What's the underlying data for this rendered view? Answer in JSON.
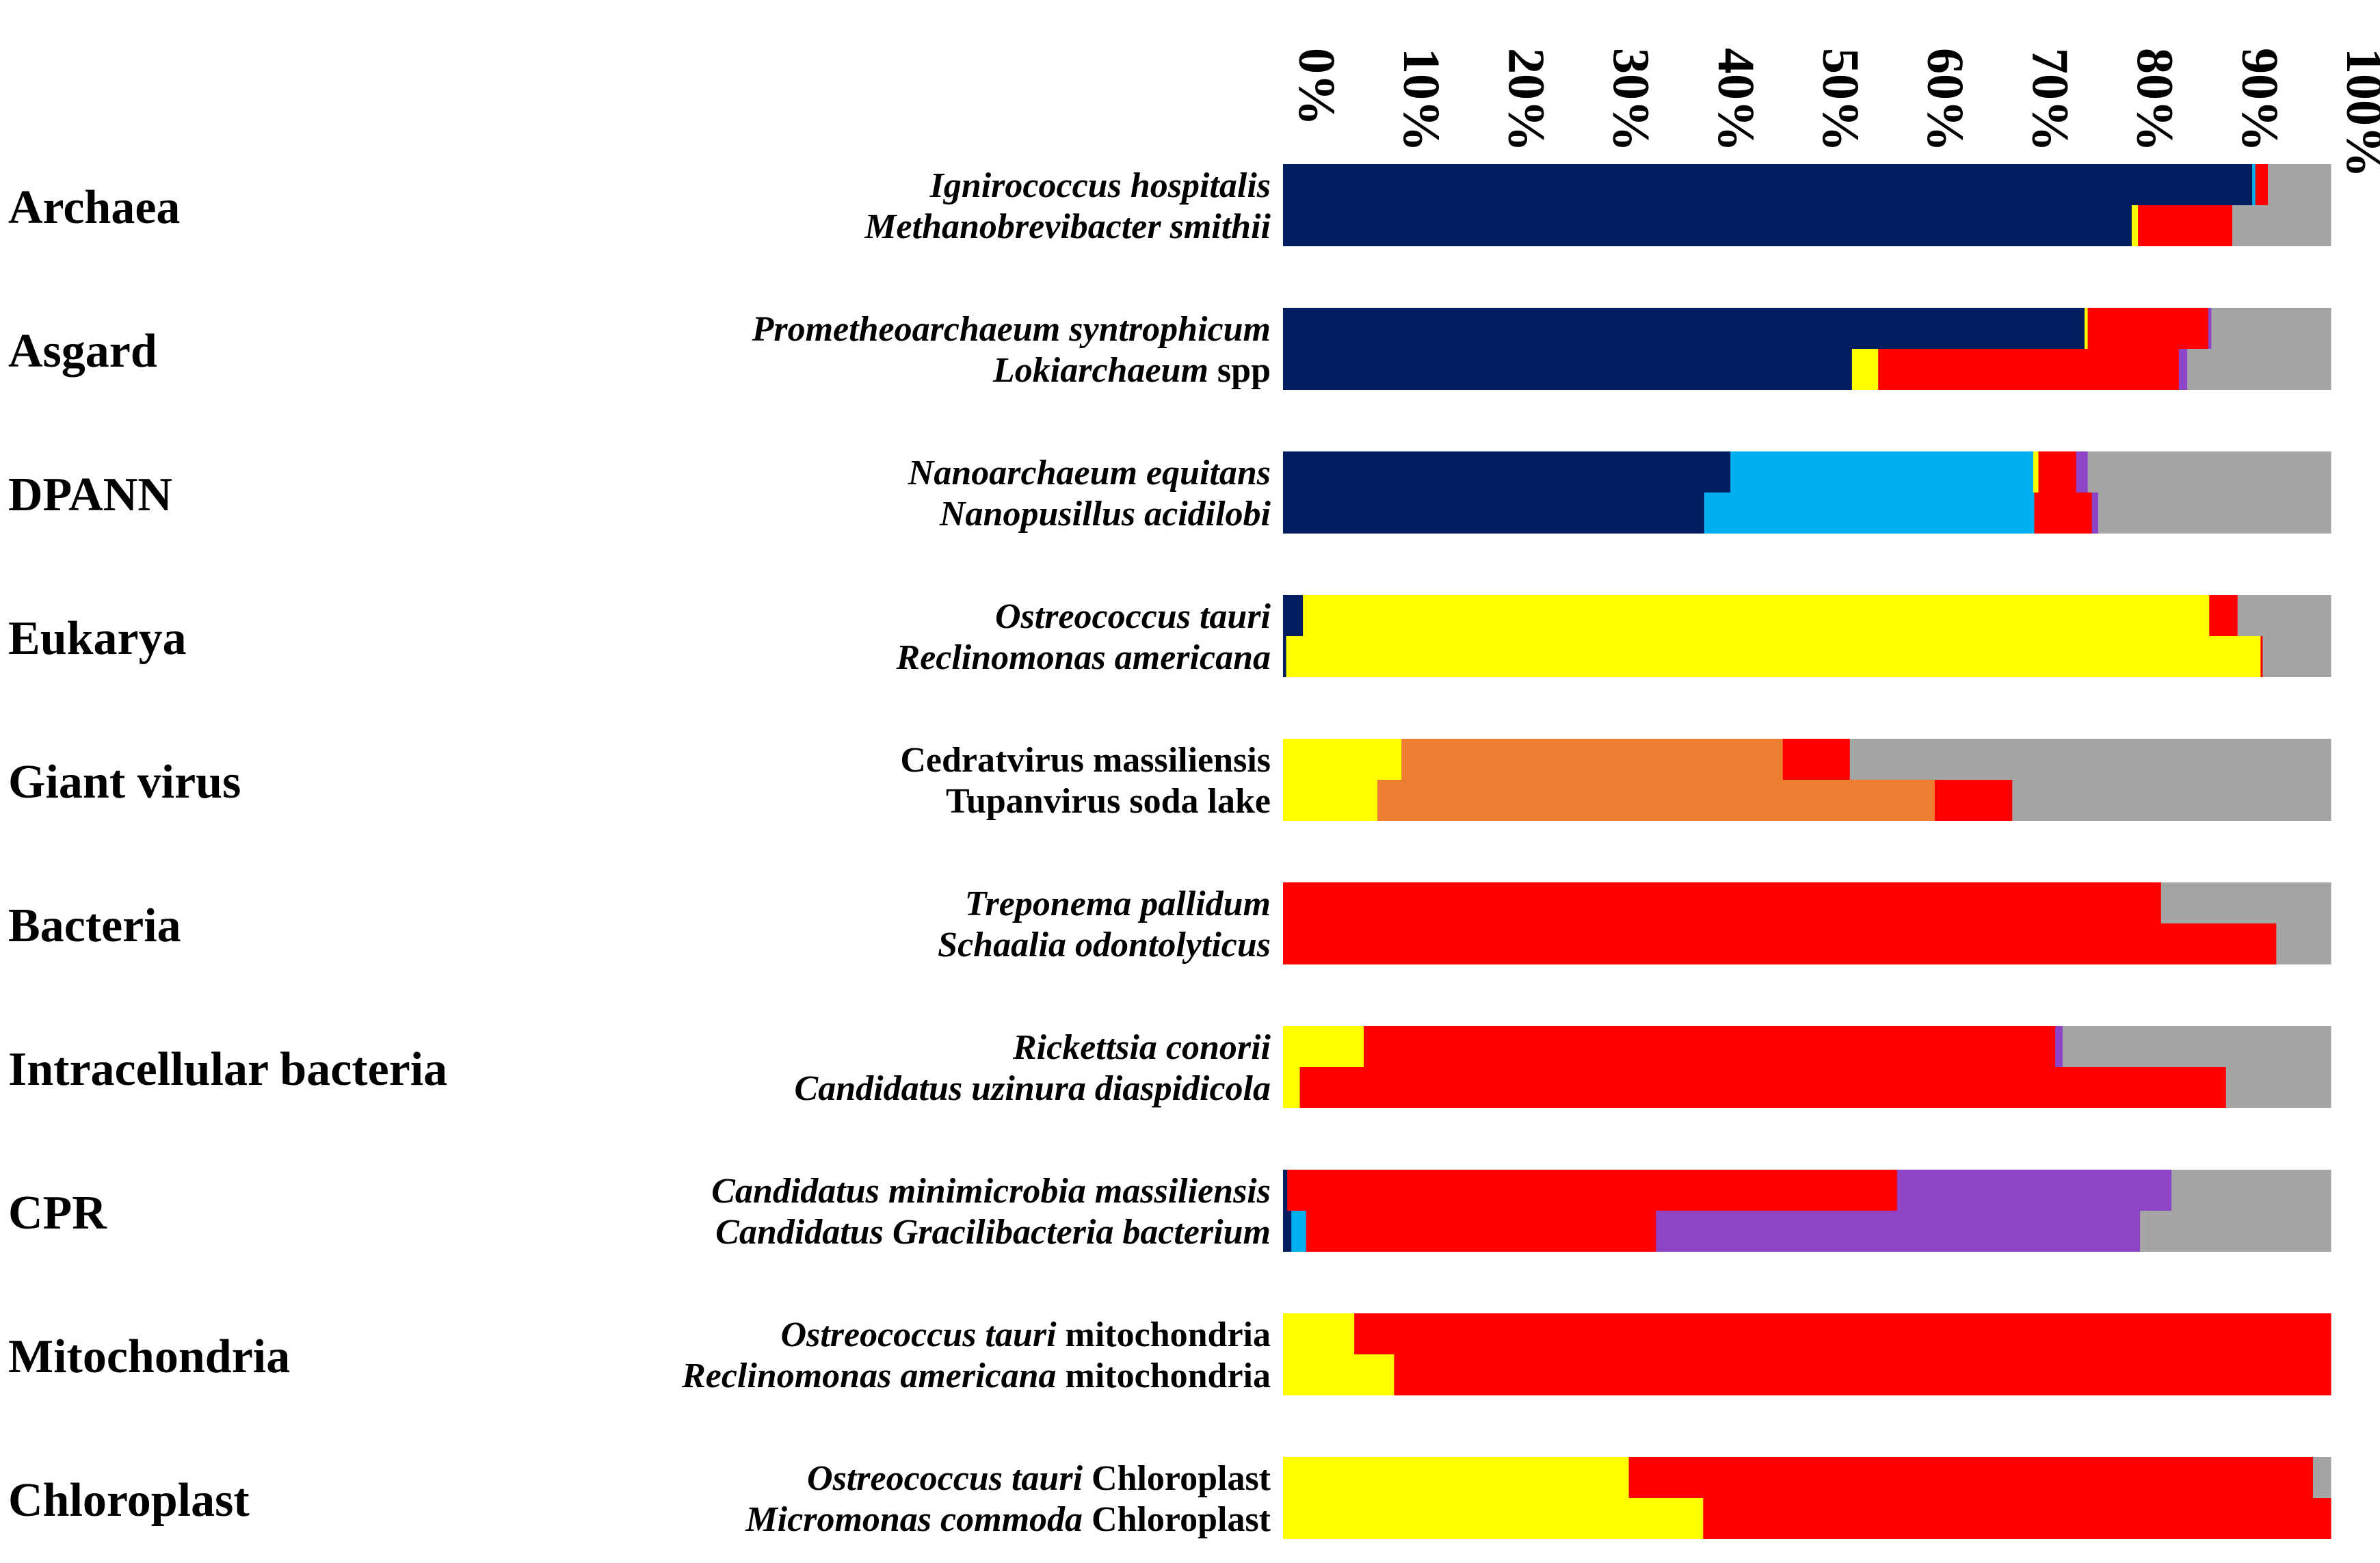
{
  "chart_data": {
    "type": "bar",
    "orientation": "horizontal",
    "stacked": "100%",
    "x_ticks": [
      "0%",
      "10%",
      "20%",
      "30%",
      "40%",
      "50%",
      "60%",
      "70%",
      "80%",
      "90%",
      "100%"
    ],
    "xlim": [
      0,
      100
    ],
    "legend": "none",
    "segment_colors": [
      "#021E5E",
      "#00B0F0",
      "#FFFF00",
      "#ED7D31",
      "#FF0000",
      "#8E44C6",
      "#A5A5A5"
    ],
    "groups": [
      {
        "name": "Archaea",
        "rows": [
          {
            "label": [
              {
                "t": "Ignirococcus hospitalis",
                "i": true
              }
            ],
            "values": [
              92.5,
              0.3,
              0,
              0,
              1.2,
              0,
              6.0
            ]
          },
          {
            "label": [
              {
                "t": "Methanobrevibacter smithii",
                "i": true
              }
            ],
            "values": [
              81.0,
              0,
              0.6,
              0,
              9.0,
              0,
              9.4
            ]
          }
        ]
      },
      {
        "name": "Asgard",
        "rows": [
          {
            "label": [
              {
                "t": "Prometheoarchaeum syntrophicum",
                "i": true
              }
            ],
            "values": [
              76.5,
              0,
              0.3,
              0,
              11.5,
              0.3,
              11.4
            ]
          },
          {
            "label": [
              {
                "t": "Lokiarchaeum",
                "i": true
              },
              {
                "t": " spp",
                "i": false
              }
            ],
            "values": [
              54.3,
              0,
              2.5,
              0,
              28.7,
              0.8,
              13.7
            ]
          }
        ]
      },
      {
        "name": "DPANN",
        "rows": [
          {
            "label": [
              {
                "t": "Nanoarchaeum equitans",
                "i": true
              }
            ],
            "values": [
              42.7,
              28.9,
              0.5,
              0,
              3.6,
              1.1,
              23.2
            ]
          },
          {
            "label": [
              {
                "t": "Nanopusillus acidilobi",
                "i": true
              }
            ],
            "values": [
              40.2,
              31.5,
              0,
              0,
              5.5,
              0.6,
              22.2
            ]
          }
        ]
      },
      {
        "name": "Eukarya",
        "rows": [
          {
            "label": [
              {
                "t": "Ostreococcus tauri",
                "i": true
              }
            ],
            "values": [
              1.9,
              0,
              86.5,
              0,
              2.7,
              0,
              8.9
            ]
          },
          {
            "label": [
              {
                "t": "Reclinomonas americana",
                "i": true
              }
            ],
            "values": [
              0.3,
              0,
              93.0,
              0,
              0.2,
              0,
              6.5
            ]
          }
        ]
      },
      {
        "name": "Giant virus",
        "rows": [
          {
            "label": [
              {
                "t": "Cedratvirus massiliensis",
                "i": false
              }
            ],
            "values": [
              0,
              0,
              11.3,
              36.4,
              6.4,
              0,
              45.9
            ]
          },
          {
            "label": [
              {
                "t": "Tupanvirus soda lake",
                "i": false
              }
            ],
            "values": [
              0,
              0,
              9.0,
              53.2,
              7.4,
              0,
              30.4
            ]
          }
        ]
      },
      {
        "name": "Bacteria",
        "rows": [
          {
            "label": [
              {
                "t": "Treponema pallidum",
                "i": true
              }
            ],
            "values": [
              0,
              0,
              0,
              0,
              83.8,
              0,
              16.2
            ]
          },
          {
            "label": [
              {
                "t": "Schaalia odontolyticus",
                "i": true
              }
            ],
            "values": [
              0,
              0,
              0,
              0,
              94.8,
              0,
              5.2
            ]
          }
        ]
      },
      {
        "name": "Intracellular bacteria",
        "rows": [
          {
            "label": [
              {
                "t": "Rickettsia conorii",
                "i": true
              }
            ],
            "values": [
              0,
              0,
              7.7,
              0,
              66.0,
              0.7,
              25.6
            ]
          },
          {
            "label": [
              {
                "t": "Candidatus uzinura diaspidicola",
                "i": true
              }
            ],
            "values": [
              0,
              0,
              1.6,
              0,
              88.4,
              0,
              10.0
            ]
          }
        ]
      },
      {
        "name": "CPR",
        "rows": [
          {
            "label": [
              {
                "t": "Candidatus minimicrobia massiliensis",
                "i": true
              }
            ],
            "values": [
              0.4,
              0,
              0,
              0,
              58.2,
              26.2,
              15.2
            ]
          },
          {
            "label": [
              {
                "t": "Candidatus Gracilibacteria bacterium",
                "i": true
              }
            ],
            "values": [
              0.8,
              1.4,
              0,
              0,
              33.4,
              46.2,
              18.2
            ]
          }
        ]
      },
      {
        "name": "Mitochondria",
        "rows": [
          {
            "label": [
              {
                "t": "Ostreococcus tauri",
                "i": true
              },
              {
                "t": " mitochondria",
                "i": false
              }
            ],
            "values": [
              0,
              0,
              6.8,
              0,
              93.2,
              0,
              0
            ]
          },
          {
            "label": [
              {
                "t": "Reclinomonas americana",
                "i": true
              },
              {
                "t": " mitochondria",
                "i": false
              }
            ],
            "values": [
              0,
              0,
              10.6,
              0,
              89.4,
              0,
              0
            ]
          }
        ]
      },
      {
        "name": "Chloroplast",
        "rows": [
          {
            "label": [
              {
                "t": "Ostreococcus tauri",
                "i": true
              },
              {
                "t": " Chloroplast",
                "i": false
              }
            ],
            "values": [
              0,
              0,
              33.0,
              0,
              65.3,
              0,
              1.7
            ]
          },
          {
            "label": [
              {
                "t": "Micromonas commoda",
                "i": true
              },
              {
                "t": " Chloroplast",
                "i": false
              }
            ],
            "values": [
              0,
              0,
              40.1,
              0,
              59.9,
              0,
              0
            ]
          }
        ]
      }
    ]
  }
}
